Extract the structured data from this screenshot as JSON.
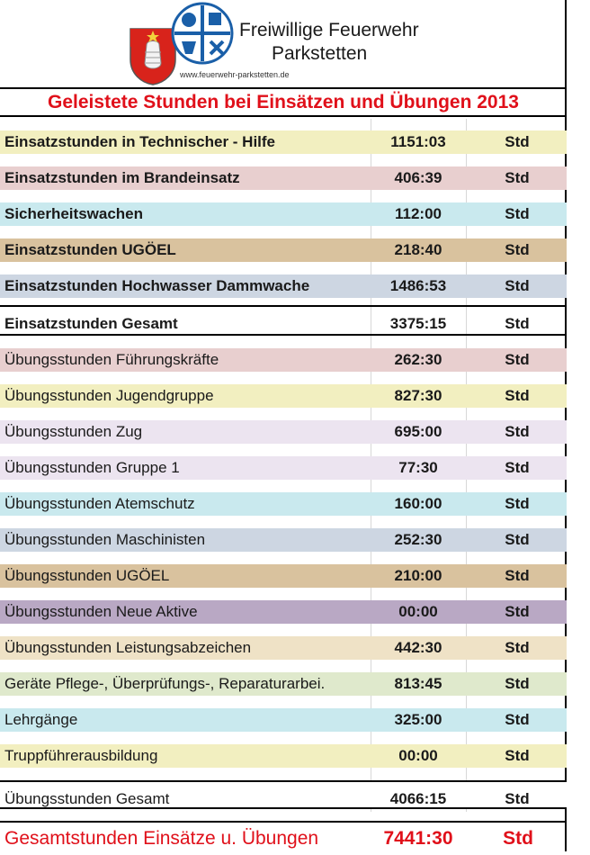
{
  "header": {
    "org_line1": "Freiwillige Feuerwehr",
    "org_line2": "Parkstetten",
    "url": "www.feuerwehr-parkstetten.de",
    "title": "Geleistete Stunden bei Einsätzen und Übungen 2013"
  },
  "colors": {
    "title_red": "#e0101a",
    "yellow": "#f2efc0",
    "rose": "#e8cfcf",
    "cyan": "#c9e9ee",
    "tan": "#d9c29e",
    "slate": "#cdd6e2",
    "lavender": "#ece4f0",
    "mauve": "#b9a8c4",
    "green": "#dfe9cc",
    "sand": "#efe2c6"
  },
  "unit_label": "Std",
  "einsatz_rows": [
    {
      "label": "Einsatzstunden in Technischer - Hilfe",
      "value": "1151:03",
      "color": "yellow"
    },
    {
      "label": "Einsatzstunden im Brandeinsatz",
      "value": "406:39",
      "color": "rose"
    },
    {
      "label": "Sicherheitswachen",
      "value": "112:00",
      "color": "cyan"
    },
    {
      "label": "Einsatzstunden UGÖEL",
      "value": "218:40",
      "color": "tan"
    },
    {
      "label": "Einsatzstunden Hochwasser Dammwache",
      "value": "1486:53",
      "color": "slate"
    }
  ],
  "einsatz_total": {
    "label": "Einsatzstunden  Gesamt",
    "value": "3375:15"
  },
  "uebung_rows": [
    {
      "label": "Übungsstunden Führungskräfte",
      "value": "262:30",
      "color": "rose"
    },
    {
      "label": "Übungsstunden Jugendgruppe",
      "value": "827:30",
      "color": "yellow"
    },
    {
      "label": "Übungsstunden Zug",
      "value": "695:00",
      "color": "lavender"
    },
    {
      "label": "Übungsstunden Gruppe 1",
      "value": "77:30",
      "color": "lavender"
    },
    {
      "label": "Übungsstunden Atemschutz",
      "value": "160:00",
      "color": "cyan"
    },
    {
      "label": "Übungsstunden Maschinisten",
      "value": "252:30",
      "color": "slate"
    },
    {
      "label": "Übungsstunden UGÖEL",
      "value": "210:00",
      "color": "tan"
    },
    {
      "label": "Übungsstunden Neue Aktive",
      "value": "00:00",
      "color": "mauve"
    },
    {
      "label": "Übungsstunden Leistungsabzeichen",
      "value": "442:30",
      "color": "sand"
    },
    {
      "label": "Geräte Pflege-, Überprüfungs-, Reparaturarbei.",
      "value": "813:45",
      "color": "green"
    },
    {
      "label": "Lehrgänge",
      "value": "325:00",
      "color": "cyan"
    },
    {
      "label": "Truppführerausbildung",
      "value": "00:00",
      "color": "yellow"
    }
  ],
  "uebung_total": {
    "label": "Übungsstunden Gesamt",
    "value": "4066:15"
  },
  "grand_total": {
    "label": "Gesamtstunden Einsätze u. Übungen",
    "value": "7441:30"
  }
}
